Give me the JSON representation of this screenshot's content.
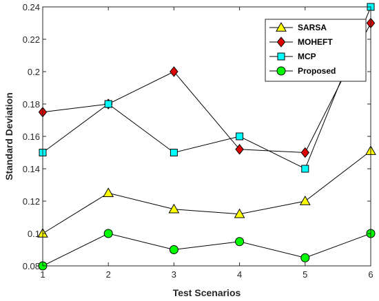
{
  "chart_data": {
    "type": "line",
    "title": "",
    "xlabel": "Test Scenarios",
    "ylabel": "Standard Deviation",
    "x": [
      1,
      2,
      3,
      4,
      5,
      6
    ],
    "xlim": [
      1,
      6
    ],
    "ylim": [
      0.08,
      0.24
    ],
    "xticks": [
      "1",
      "2",
      "3",
      "4",
      "5",
      "6"
    ],
    "yticks": [
      "0.08",
      "0.1",
      "0.12",
      "0.14",
      "0.16",
      "0.18",
      "0.2",
      "0.22",
      "0.24"
    ],
    "grid": false,
    "legend": "top-right",
    "series": [
      {
        "name": "SARSA",
        "values": [
          0.1,
          0.125,
          0.115,
          0.112,
          0.12,
          0.151
        ],
        "marker": "triangle-up",
        "color": "#ffff00"
      },
      {
        "name": "MOHEFT",
        "values": [
          0.175,
          0.18,
          0.2,
          0.152,
          0.15,
          0.23
        ],
        "marker": "diamond",
        "color": "#dd0000"
      },
      {
        "name": "MCP",
        "values": [
          0.15,
          0.18,
          0.15,
          0.16,
          0.14,
          0.24
        ],
        "marker": "square",
        "color": "#00ffff"
      },
      {
        "name": "Proposed",
        "values": [
          0.08,
          0.1,
          0.09,
          0.095,
          0.085,
          0.1
        ],
        "marker": "circle",
        "color": "#00ff00"
      }
    ]
  }
}
